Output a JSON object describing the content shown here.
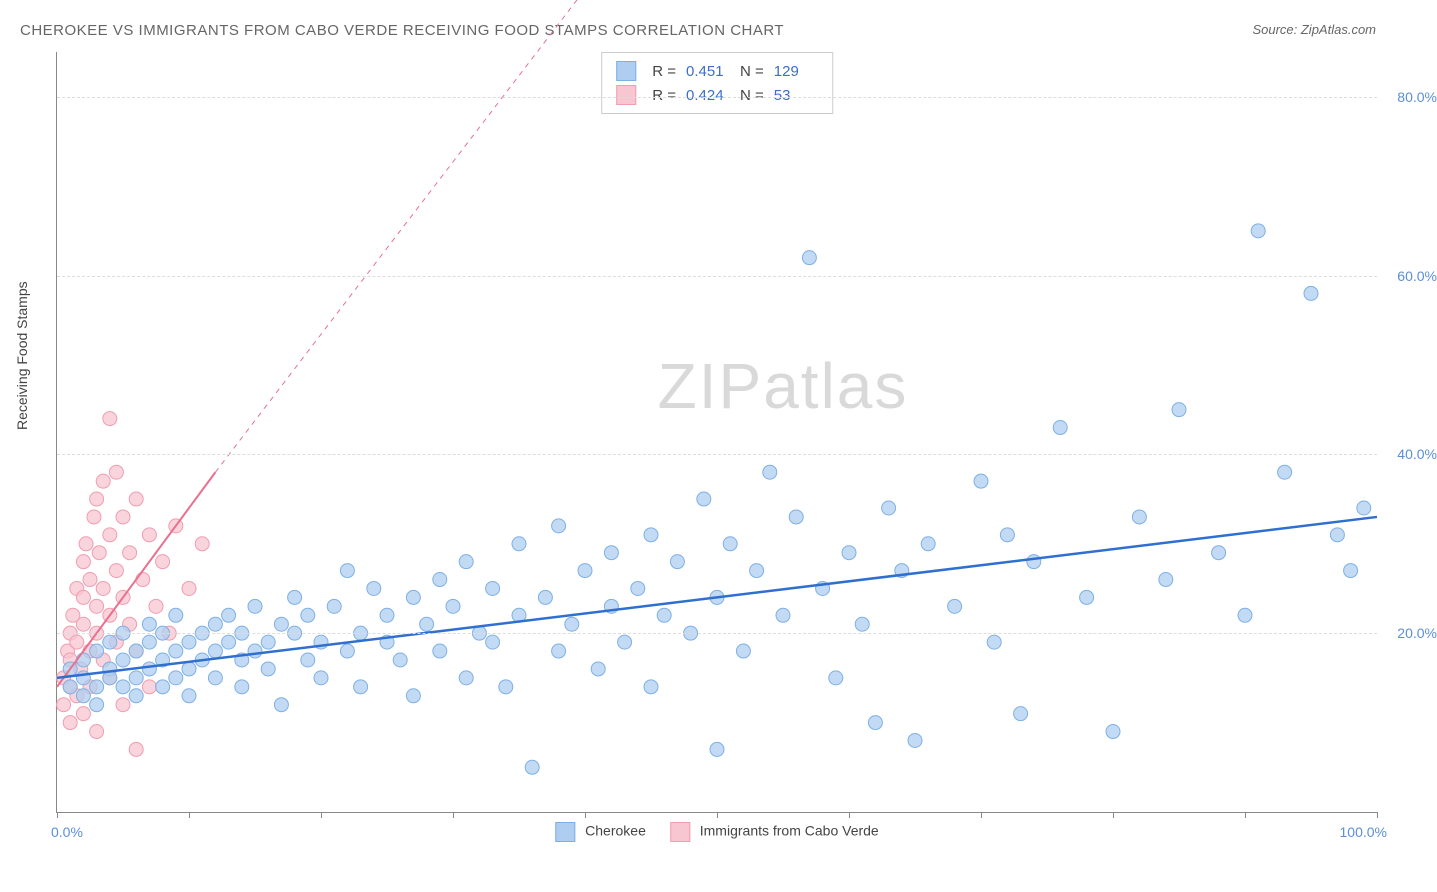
{
  "title": "CHEROKEE VS IMMIGRANTS FROM CABO VERDE RECEIVING FOOD STAMPS CORRELATION CHART",
  "source": "Source: ZipAtlas.com",
  "ylabel": "Receiving Food Stamps",
  "watermark_a": "ZIP",
  "watermark_b": "atlas",
  "chart": {
    "type": "scatter",
    "xlim": [
      0,
      100
    ],
    "ylim": [
      0,
      85
    ],
    "ytick_values": [
      20,
      40,
      60,
      80
    ],
    "ytick_labels": [
      "20.0%",
      "40.0%",
      "60.0%",
      "80.0%"
    ],
    "xtick_values": [
      0,
      10,
      20,
      30,
      40,
      50,
      60,
      70,
      80,
      90,
      100
    ],
    "x_left_label": "0.0%",
    "x_right_label": "100.0%",
    "background_color": "#ffffff",
    "grid_color": "#dddddd",
    "series": [
      {
        "name": "Cherokee",
        "color_fill": "#aecdf0",
        "color_stroke": "#7fb0e4",
        "line_color": "#2f6fd0",
        "line_width": 2.5,
        "r": "0.451",
        "n": "129",
        "regression": {
          "x1": 0,
          "y1": 15,
          "x2": 100,
          "y2": 33
        },
        "points": [
          [
            1,
            14
          ],
          [
            1,
            16
          ],
          [
            2,
            13
          ],
          [
            2,
            17
          ],
          [
            2,
            15
          ],
          [
            3,
            14
          ],
          [
            3,
            18
          ],
          [
            3,
            12
          ],
          [
            4,
            16
          ],
          [
            4,
            15
          ],
          [
            4,
            19
          ],
          [
            5,
            17
          ],
          [
            5,
            14
          ],
          [
            5,
            20
          ],
          [
            6,
            15
          ],
          [
            6,
            18
          ],
          [
            6,
            13
          ],
          [
            7,
            16
          ],
          [
            7,
            19
          ],
          [
            7,
            21
          ],
          [
            8,
            17
          ],
          [
            8,
            14
          ],
          [
            8,
            20
          ],
          [
            9,
            18
          ],
          [
            9,
            15
          ],
          [
            9,
            22
          ],
          [
            10,
            19
          ],
          [
            10,
            16
          ],
          [
            10,
            13
          ],
          [
            11,
            20
          ],
          [
            11,
            17
          ],
          [
            12,
            18
          ],
          [
            12,
            21
          ],
          [
            12,
            15
          ],
          [
            13,
            19
          ],
          [
            13,
            22
          ],
          [
            14,
            17
          ],
          [
            14,
            20
          ],
          [
            14,
            14
          ],
          [
            15,
            18
          ],
          [
            15,
            23
          ],
          [
            16,
            19
          ],
          [
            16,
            16
          ],
          [
            17,
            21
          ],
          [
            17,
            12
          ],
          [
            18,
            20
          ],
          [
            18,
            24
          ],
          [
            19,
            17
          ],
          [
            19,
            22
          ],
          [
            20,
            19
          ],
          [
            20,
            15
          ],
          [
            21,
            23
          ],
          [
            22,
            18
          ],
          [
            22,
            27
          ],
          [
            23,
            20
          ],
          [
            23,
            14
          ],
          [
            24,
            25
          ],
          [
            25,
            19
          ],
          [
            25,
            22
          ],
          [
            26,
            17
          ],
          [
            27,
            24
          ],
          [
            27,
            13
          ],
          [
            28,
            21
          ],
          [
            29,
            26
          ],
          [
            29,
            18
          ],
          [
            30,
            23
          ],
          [
            31,
            15
          ],
          [
            31,
            28
          ],
          [
            32,
            20
          ],
          [
            33,
            25
          ],
          [
            33,
            19
          ],
          [
            34,
            14
          ],
          [
            35,
            22
          ],
          [
            35,
            30
          ],
          [
            36,
            5
          ],
          [
            37,
            24
          ],
          [
            38,
            18
          ],
          [
            38,
            32
          ],
          [
            39,
            21
          ],
          [
            40,
            27
          ],
          [
            41,
            16
          ],
          [
            42,
            29
          ],
          [
            42,
            23
          ],
          [
            43,
            19
          ],
          [
            44,
            25
          ],
          [
            45,
            31
          ],
          [
            45,
            14
          ],
          [
            46,
            22
          ],
          [
            47,
            28
          ],
          [
            48,
            20
          ],
          [
            49,
            35
          ],
          [
            50,
            24
          ],
          [
            50,
            7
          ],
          [
            51,
            30
          ],
          [
            52,
            18
          ],
          [
            53,
            27
          ],
          [
            54,
            38
          ],
          [
            55,
            22
          ],
          [
            56,
            33
          ],
          [
            57,
            62
          ],
          [
            58,
            25
          ],
          [
            59,
            15
          ],
          [
            60,
            29
          ],
          [
            61,
            21
          ],
          [
            62,
            10
          ],
          [
            63,
            34
          ],
          [
            64,
            27
          ],
          [
            65,
            8
          ],
          [
            66,
            30
          ],
          [
            68,
            23
          ],
          [
            70,
            37
          ],
          [
            71,
            19
          ],
          [
            72,
            31
          ],
          [
            73,
            11
          ],
          [
            74,
            28
          ],
          [
            76,
            43
          ],
          [
            78,
            24
          ],
          [
            80,
            9
          ],
          [
            82,
            33
          ],
          [
            84,
            26
          ],
          [
            85,
            45
          ],
          [
            88,
            29
          ],
          [
            90,
            22
          ],
          [
            91,
            65
          ],
          [
            93,
            38
          ],
          [
            95,
            58
          ],
          [
            97,
            31
          ],
          [
            98,
            27
          ],
          [
            99,
            34
          ]
        ]
      },
      {
        "name": "Immigrants from Cabo Verde",
        "color_fill": "#f7c6d0",
        "color_stroke": "#f19db0",
        "line_color": "#e8718f",
        "line_width": 2,
        "r": "0.424",
        "n": "53",
        "regression": {
          "x1": 0,
          "y1": 14,
          "x2": 12,
          "y2": 38
        },
        "regression_dash": {
          "x1": 12,
          "y1": 38,
          "x2": 40,
          "y2": 92
        },
        "points": [
          [
            0.5,
            12
          ],
          [
            0.5,
            15
          ],
          [
            0.8,
            18
          ],
          [
            1,
            10
          ],
          [
            1,
            14
          ],
          [
            1,
            20
          ],
          [
            1,
            17
          ],
          [
            1.2,
            22
          ],
          [
            1.5,
            13
          ],
          [
            1.5,
            25
          ],
          [
            1.5,
            19
          ],
          [
            1.8,
            16
          ],
          [
            2,
            28
          ],
          [
            2,
            21
          ],
          [
            2,
            11
          ],
          [
            2,
            24
          ],
          [
            2.2,
            30
          ],
          [
            2.5,
            18
          ],
          [
            2.5,
            26
          ],
          [
            2.5,
            14
          ],
          [
            2.8,
            33
          ],
          [
            3,
            20
          ],
          [
            3,
            35
          ],
          [
            3,
            23
          ],
          [
            3,
            9
          ],
          [
            3.2,
            29
          ],
          [
            3.5,
            17
          ],
          [
            3.5,
            37
          ],
          [
            3.5,
            25
          ],
          [
            4,
            31
          ],
          [
            4,
            15
          ],
          [
            4,
            22
          ],
          [
            4,
            44
          ],
          [
            4.5,
            27
          ],
          [
            4.5,
            19
          ],
          [
            4.5,
            38
          ],
          [
            5,
            24
          ],
          [
            5,
            33
          ],
          [
            5,
            12
          ],
          [
            5.5,
            29
          ],
          [
            5.5,
            21
          ],
          [
            6,
            35
          ],
          [
            6,
            18
          ],
          [
            6,
            7
          ],
          [
            6.5,
            26
          ],
          [
            7,
            31
          ],
          [
            7,
            14
          ],
          [
            7.5,
            23
          ],
          [
            8,
            28
          ],
          [
            8.5,
            20
          ],
          [
            9,
            32
          ],
          [
            10,
            25
          ],
          [
            11,
            30
          ]
        ]
      }
    ]
  },
  "legend": {
    "series1_label": "Cherokee",
    "series2_label": "Immigrants from Cabo Verde"
  },
  "stats": {
    "r_label": "R =",
    "n_label": "N ="
  }
}
